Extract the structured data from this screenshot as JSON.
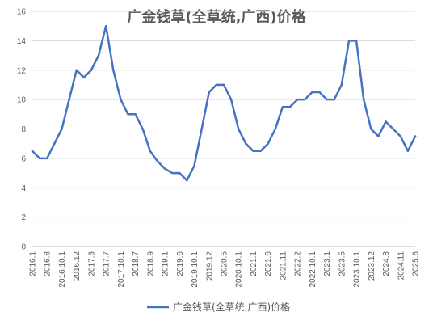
{
  "chart_data": {
    "type": "line",
    "title": "广金钱草(全草统,广西)价格",
    "xlabel": "",
    "ylabel": "",
    "ylim": [
      0,
      16
    ],
    "y_ticks": [
      0,
      2,
      4,
      6,
      8,
      10,
      12,
      14,
      16
    ],
    "grid": true,
    "legend_position": "bottom",
    "x_tick_labels": [
      "2016.1",
      "2016.8",
      "2016.10.1",
      "2016.12",
      "2017.3",
      "2017.7",
      "2017.10.1",
      "2018.7",
      "2018.9",
      "2019.1",
      "2019.6",
      "2019.10.1",
      "2019.12",
      "2020.5",
      "2020.10.1",
      "2021.1",
      "2021.6",
      "2021.11",
      "2022.2",
      "2022.10.1",
      "2023.1",
      "2023.5",
      "2023.10.1",
      "2023.12",
      "2024.8",
      "2024.11",
      "2025.6"
    ],
    "series": [
      {
        "name": "广金钱草(全草统,广西)价格",
        "color": "#4472C4",
        "values": [
          6.5,
          6.0,
          6.0,
          7.0,
          8.0,
          10.0,
          12.0,
          11.5,
          12.0,
          13.0,
          15.0,
          12.0,
          10.0,
          9.0,
          9.0,
          8.0,
          6.5,
          5.8,
          5.3,
          5.0,
          5.0,
          4.5,
          5.5,
          8.0,
          10.5,
          11.0,
          11.0,
          10.0,
          8.0,
          7.0,
          6.5,
          6.5,
          7.0,
          8.0,
          9.5,
          9.5,
          10.0,
          10.0,
          10.5,
          10.5,
          10.0,
          10.0,
          11.0,
          14.0,
          14.0,
          10.0,
          8.0,
          7.5,
          8.5,
          8.0,
          7.5,
          6.5,
          7.5
        ]
      }
    ]
  }
}
